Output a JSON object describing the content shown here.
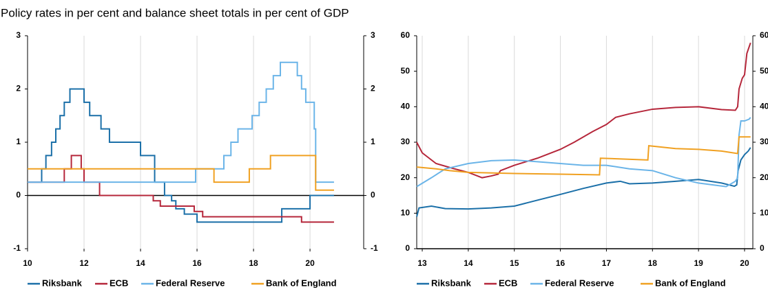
{
  "title": "Policy rates in per cent and balance sheet totals in per cent of GDP",
  "chart_data": [
    {
      "type": "line",
      "drawstyle": "steps-post",
      "grid": "x",
      "xlim": [
        10,
        21.9
      ],
      "xticks": [
        10,
        12,
        14,
        16,
        18,
        20
      ],
      "ylim": [
        -1,
        3
      ],
      "yticks": [
        -1,
        0,
        1,
        2,
        3
      ],
      "series": [
        {
          "name": "Riksbank",
          "color": "#1a6fa8",
          "x": [
            10,
            10.5,
            10.65,
            10.85,
            11.0,
            11.15,
            11.3,
            11.5,
            12.0,
            12.2,
            12.6,
            12.9,
            14.0,
            14.5,
            14.85,
            15.1,
            15.25,
            15.55,
            16.0,
            19.0,
            20.0,
            20.85
          ],
          "values": [
            0.25,
            0.5,
            0.75,
            1,
            1.25,
            1.5,
            1.75,
            2,
            1.75,
            1.5,
            1.25,
            1,
            0.75,
            0.25,
            0,
            -0.1,
            -0.25,
            -0.35,
            -0.5,
            -0.25,
            0,
            0
          ]
        },
        {
          "name": "ECB",
          "color": "#b5263a",
          "x": [
            10,
            11.3,
            11.55,
            11.9,
            12.0,
            12.55,
            14.45,
            14.7,
            15.9,
            16.2,
            19.7,
            20.85
          ],
          "values": [
            0.25,
            0.5,
            0.75,
            0.5,
            0.25,
            0,
            -0.1,
            -0.2,
            -0.3,
            -0.4,
            -0.5,
            -0.5
          ]
        },
        {
          "name": "Federal Reserve",
          "color": "#6ab4e8",
          "x": [
            10,
            15.95,
            16.95,
            17.2,
            17.45,
            17.95,
            18.2,
            18.45,
            18.7,
            18.95,
            19.55,
            19.7,
            19.85,
            20.15,
            20.2,
            20.85
          ],
          "values": [
            0.25,
            0.5,
            0.75,
            1,
            1.25,
            1.5,
            1.75,
            2,
            2.25,
            2.5,
            2.25,
            2,
            1.75,
            1.25,
            0.25,
            0.25
          ]
        },
        {
          "name": "Bank of England",
          "color": "#f0a020",
          "x": [
            10,
            16.6,
            17.85,
            18.6,
            20.2,
            20.85
          ],
          "values": [
            0.5,
            0.25,
            0.5,
            0.75,
            0.1,
            0.1
          ]
        }
      ]
    },
    {
      "type": "line",
      "grid": "x",
      "xlim": [
        12.88,
        20.18
      ],
      "xticks": [
        13,
        14,
        15,
        16,
        17,
        18,
        19,
        20
      ],
      "ylim": [
        0,
        60
      ],
      "yticks": [
        0,
        10,
        20,
        30,
        40,
        50,
        60
      ],
      "series": [
        {
          "name": "Riksbank",
          "color": "#1a6fa8",
          "x": [
            12.88,
            12.93,
            13.2,
            13.5,
            14,
            14.5,
            15,
            15.3,
            15.6,
            16,
            16.5,
            17,
            17.3,
            17.5,
            18,
            18.5,
            19,
            19.5,
            19.78,
            19.83,
            19.86,
            19.92,
            20.0,
            20.08,
            20.13
          ],
          "values": [
            9,
            11.5,
            12,
            11.3,
            11.2,
            11.5,
            12,
            13,
            14,
            15.3,
            17,
            18.5,
            19,
            18.3,
            18.5,
            19,
            19.5,
            18.5,
            17.6,
            18,
            22,
            25,
            26.5,
            27.5,
            28.5
          ]
        },
        {
          "name": "ECB",
          "color": "#b5263a",
          "x": [
            12.88,
            13,
            13.3,
            13.7,
            14,
            14.3,
            14.5,
            14.65,
            14.7,
            15,
            15.5,
            16,
            16.3,
            16.7,
            17,
            17.2,
            17.5,
            18,
            18.5,
            19,
            19.5,
            19.8,
            19.85,
            19.88,
            19.95,
            20.0,
            20.05,
            20.13
          ],
          "values": [
            30,
            27,
            24,
            22.5,
            21.5,
            20,
            20.5,
            21,
            22,
            23.5,
            25.5,
            28,
            30,
            33,
            35,
            37,
            38,
            39.3,
            39.8,
            40,
            39.2,
            39,
            40,
            45,
            48,
            49,
            55,
            58
          ]
        },
        {
          "name": "Federal Reserve",
          "color": "#6ab4e8",
          "x": [
            12.88,
            13.2,
            13.5,
            14,
            14.5,
            15,
            15.5,
            16,
            16.5,
            17,
            17.5,
            18,
            18.5,
            19,
            19.3,
            19.6,
            19.8,
            19.85,
            19.88,
            19.92,
            20.0,
            20.1,
            20.13
          ],
          "values": [
            17.5,
            20,
            22.5,
            24,
            24.8,
            25,
            24.5,
            24,
            23.5,
            23.5,
            22.5,
            22,
            20,
            18.5,
            18,
            17.5,
            19,
            20,
            32,
            36,
            36,
            36.5,
            37
          ]
        },
        {
          "name": "Bank of England",
          "color": "#f0a020",
          "x": [
            12.88,
            13.3,
            13.6,
            14,
            15,
            16,
            16.85,
            16.87,
            17.9,
            17.92,
            18.5,
            19,
            19.5,
            19.85,
            19.88,
            20.13
          ],
          "values": [
            23,
            22.5,
            22,
            21.5,
            21.2,
            21,
            20.8,
            25.5,
            25,
            29,
            28.2,
            28,
            27.5,
            26.8,
            31.5,
            31.5
          ]
        }
      ]
    }
  ]
}
